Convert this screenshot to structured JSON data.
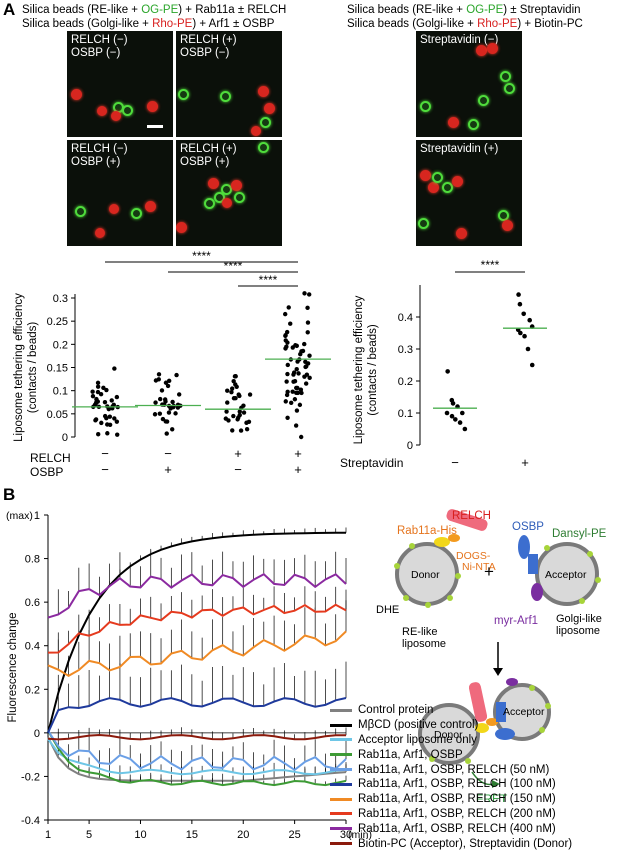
{
  "panel_a": {
    "letter": "A",
    "left_header_line1": [
      "Silica beads (RE-like + ",
      "OG-PE",
      ") + Rab11a ± RELCH"
    ],
    "left_header_line2": [
      "Silica beads (Golgi-like + ",
      "Rho-PE",
      ") + Arf1 ± OSBP"
    ],
    "right_header_line1": [
      "Silica beads (RE-like + ",
      "OG-PE",
      ") ± Streptavidin"
    ],
    "right_header_line2": [
      "Silica beads (Golgi-like + ",
      "Rho-PE",
      ") + Biotin-PC"
    ],
    "images": {
      "m1": "RELCH (−)\nOSBP (−)",
      "m2": "RELCH (+)\nOSBP (−)",
      "m3": "RELCH (−)\nOSBP (+)",
      "m4": "RELCH (+)\nOSBP (+)",
      "s1": "Streptavidin (−)",
      "s2": "Streptavidin (+)"
    }
  },
  "panel_b": {
    "letter": "B",
    "diagram": {
      "rab11a": "Rab11a-His",
      "relch": "RELCH",
      "dogs": "DOGS-\nNi-NTA",
      "donor": "Donor",
      "dhe": "DHE",
      "re_like": "RE-like\nliposome",
      "plus": "+",
      "osbp": "OSBP",
      "dansyl": "Dansyl-PE",
      "acceptor": "Acceptor",
      "myr_arf1": "myr-Arf1",
      "golgi_like": "Golgi-like\nliposome",
      "donor2": "Donor",
      "acceptor2": "Acceptor",
      "fret": "FRET"
    }
  },
  "chart_data": [
    {
      "type": "scatter",
      "ylabel": "Liposome tethering efficiency\n(contacts / beads)",
      "ylim": [
        0,
        0.3
      ],
      "yticks": [
        0,
        0.05,
        0.1,
        0.15,
        0.2,
        0.25,
        0.3
      ],
      "ytick_labels": [
        "0",
        "0.05",
        "0.1",
        "0.15",
        "0.2",
        "0.25",
        "0.3"
      ],
      "row_labels": [
        "RELCH",
        "OSBP"
      ],
      "groups": [
        {
          "RELCH": "−",
          "OSBP": "−",
          "mean": 0.065
        },
        {
          "RELCH": "−",
          "OSBP": "+",
          "mean": 0.068
        },
        {
          "RELCH": "+",
          "OSBP": "−",
          "mean": 0.06
        },
        {
          "RELCH": "+",
          "OSBP": "+",
          "mean": 0.168
        }
      ],
      "significance": [
        "****",
        "****",
        "****"
      ],
      "colors": {
        "points": "#000000",
        "mean": "#4caf50"
      }
    },
    {
      "type": "scatter",
      "ylabel": "Liposome tethering efficiency\n(contacts / beads)",
      "ylim": [
        0,
        0.5
      ],
      "yticks": [
        0,
        0.1,
        0.2,
        0.3,
        0.4
      ],
      "ytick_labels": [
        "0",
        "0.1",
        "0.2",
        "0.3",
        "0.4"
      ],
      "row_label": "Streptavidin",
      "categories": [
        "−",
        "+"
      ],
      "points": [
        [
          0.23,
          0.14,
          0.13,
          0.12,
          0.1,
          0.1,
          0.09,
          0.08,
          0.07,
          0.05
        ],
        [
          0.47,
          0.44,
          0.41,
          0.39,
          0.37,
          0.36,
          0.35,
          0.34,
          0.3,
          0.25
        ]
      ],
      "means": [
        0.115,
        0.365
      ],
      "significance": "****",
      "colors": {
        "points": "#000000",
        "mean": "#4caf50"
      }
    },
    {
      "type": "line",
      "ylabel": "Fluorescence change",
      "ymax_label": "(max)",
      "xunit": "(min)",
      "xlim": [
        1,
        30
      ],
      "ylim": [
        -0.4,
        1
      ],
      "xticks": [
        1,
        5,
        10,
        15,
        20,
        25,
        30
      ],
      "yticks": [
        -0.4,
        -0.2,
        0,
        0.2,
        0.4,
        0.6,
        0.8,
        1
      ],
      "ytick_labels": [
        "-0.4",
        "-0.2",
        "0",
        "0.2",
        "0.4",
        "0.6",
        "0.8",
        "1"
      ],
      "series": [
        {
          "name": "Control protein",
          "color": "#808080"
        },
        {
          "name": "MβCD (positive control)",
          "color": "#000000"
        },
        {
          "name": "Acceptor liposome only",
          "color": "#6ec6e6"
        },
        {
          "name": "Rab11a, Arf1, OSBP",
          "color": "#3d9b35"
        },
        {
          "name": "Rab11a, Arf1, OSBP, RELCH (50 nM)",
          "color": "#6a9fe6"
        },
        {
          "name": "Rab11a, Arf1, OSBP, RELCH (100 nM)",
          "color": "#1f3a9c"
        },
        {
          "name": "Rab11a, Arf1, OSBP, RELCH (150 nM)",
          "color": "#f08a24"
        },
        {
          "name": "Rab11a, Arf1, OSBP, RELCH (200 nM)",
          "color": "#e53a1e"
        },
        {
          "name": "Rab11a, Arf1, OSBP, RELCH (400 nM)",
          "color": "#8b2aa0"
        },
        {
          "name": "Biotin-PC (Acceptor), Streptavidin (Donor)",
          "color": "#8b1a0c"
        }
      ]
    }
  ]
}
